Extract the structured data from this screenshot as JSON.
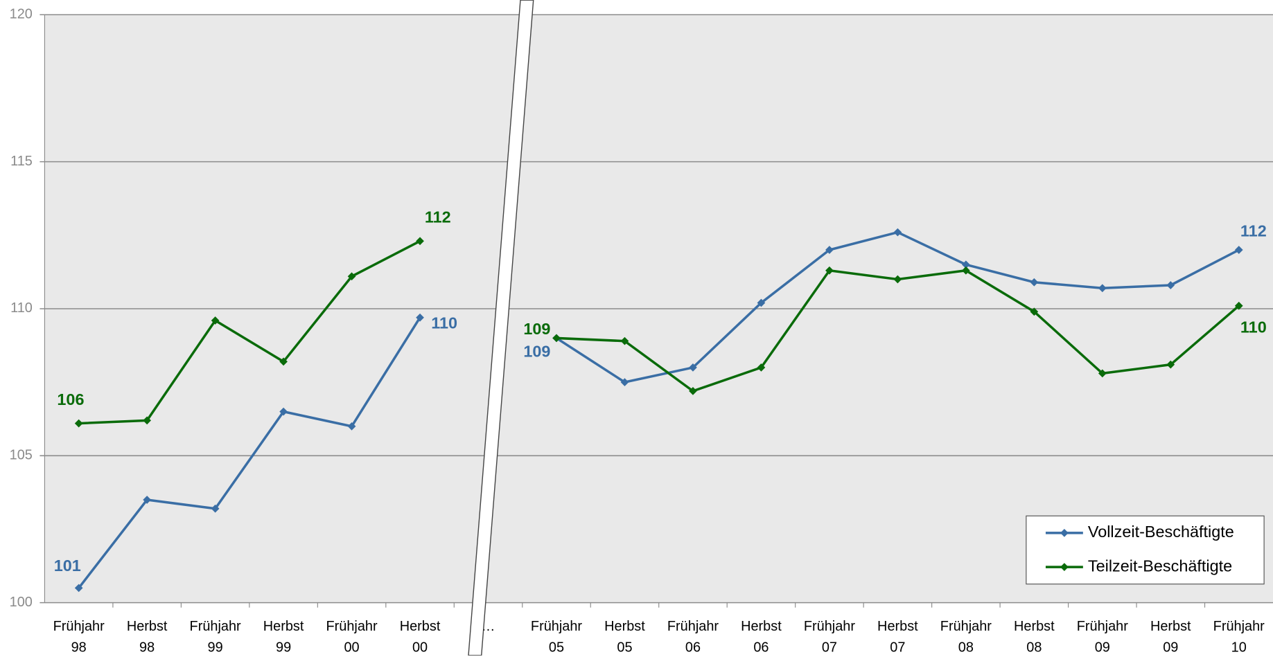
{
  "chart_data": {
    "type": "line",
    "categories": [
      [
        "Frühjahr",
        "98"
      ],
      [
        "Herbst",
        "98"
      ],
      [
        "Frühjahr",
        "99"
      ],
      [
        "Herbst",
        "99"
      ],
      [
        "Frühjahr",
        "00"
      ],
      [
        "Herbst",
        "00"
      ],
      [
        "…"
      ],
      [
        "Frühjahr",
        "05"
      ],
      [
        "Herbst",
        "05"
      ],
      [
        "Frühjahr",
        "06"
      ],
      [
        "Herbst",
        "06"
      ],
      [
        "Frühjahr",
        "07"
      ],
      [
        "Herbst",
        "07"
      ],
      [
        "Frühjahr",
        "08"
      ],
      [
        "Herbst",
        "08"
      ],
      [
        "Frühjahr",
        "09"
      ],
      [
        "Herbst",
        "09"
      ],
      [
        "Frühjahr",
        "10"
      ]
    ],
    "series": [
      {
        "name": "Vollzeit-Beschäftigte",
        "color": "#3a6ea5",
        "values": [
          100.5,
          103.5,
          103.2,
          106.5,
          106.0,
          109.7,
          null,
          109.0,
          107.5,
          108.0,
          110.2,
          112.0,
          112.6,
          111.5,
          110.9,
          110.7,
          110.8,
          112.0
        ],
        "value_labels": [
          "101",
          null,
          null,
          null,
          null,
          "110",
          null,
          "109",
          null,
          null,
          null,
          null,
          null,
          null,
          null,
          null,
          null,
          "112"
        ]
      },
      {
        "name": "Teilzeit-Beschäftigte",
        "color": "#0a6b0a",
        "values": [
          106.1,
          106.2,
          109.6,
          108.2,
          111.1,
          112.3,
          null,
          109.0,
          108.9,
          107.2,
          108.0,
          111.3,
          111.0,
          111.3,
          109.9,
          107.8,
          108.1,
          110.1
        ],
        "value_labels": [
          "106",
          null,
          null,
          null,
          null,
          "112",
          null,
          "109",
          null,
          null,
          null,
          null,
          null,
          null,
          null,
          null,
          null,
          "110"
        ]
      }
    ],
    "ylim": [
      100,
      120
    ],
    "yticks": [
      100,
      105,
      110,
      115,
      120
    ],
    "grid": true,
    "legend": "lower right"
  }
}
